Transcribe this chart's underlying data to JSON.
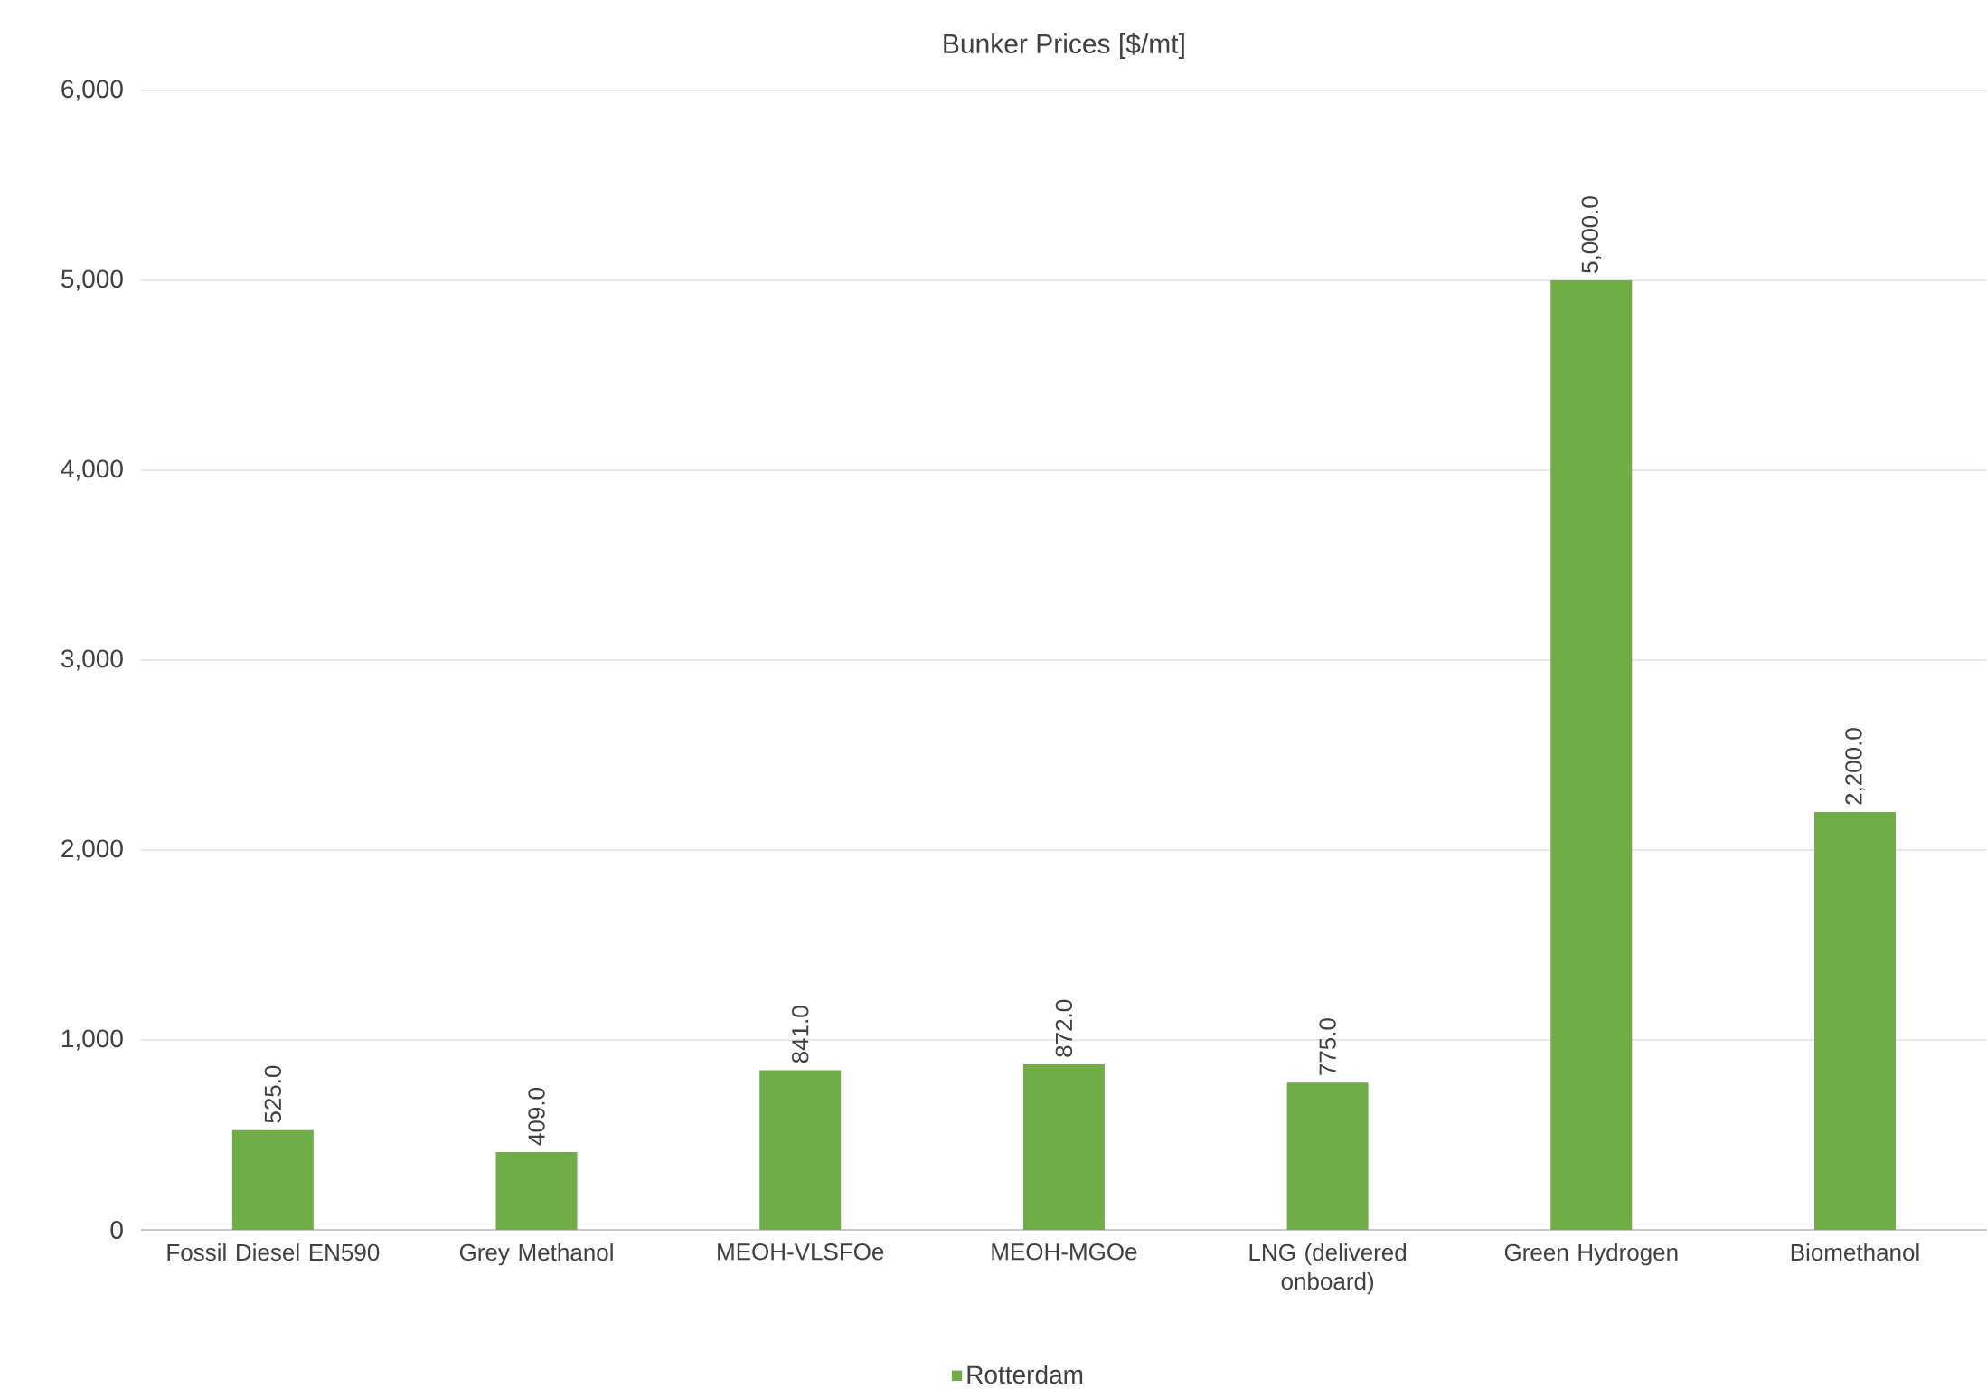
{
  "chart_data": {
    "type": "bar",
    "title": "Bunker Prices [$/mt]",
    "categories": [
      "Fossil Diesel EN590",
      "Grey Methanol",
      "MEOH-VLSFOe",
      "MEOH-MGOe",
      "LNG (delivered onboard)",
      "Green Hydrogen",
      "Biomethanol"
    ],
    "series": [
      {
        "name": "Rotterdam",
        "color": "#70ad47",
        "values": [
          525,
          409,
          841,
          872,
          775,
          5000,
          2200
        ],
        "value_labels": [
          "525.0",
          "409.0",
          "841.0",
          "872.0",
          "775.0",
          "5,000.0",
          "2,200.0"
        ]
      }
    ],
    "ylim": [
      0,
      6000
    ],
    "yticks": [
      0,
      {
        "value": 1000,
        "label": "1,000"
      },
      {
        "value": 2000,
        "label": "2,000"
      },
      {
        "value": 3000,
        "label": "3,000"
      },
      {
        "value": 4000,
        "label": "4,000"
      },
      {
        "value": 5000,
        "label": "5,000"
      },
      {
        "value": 6000,
        "label": "6,000"
      }
    ],
    "grid": "y",
    "legend": "bottom"
  }
}
